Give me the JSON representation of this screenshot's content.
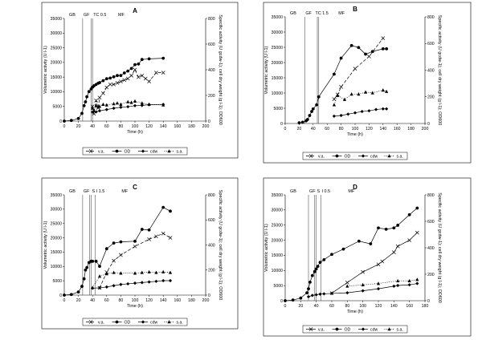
{
  "chart_data": [
    {
      "type": "line",
      "title": "A",
      "xlabel": "Time (h)",
      "ylabel_left": "Volumetric activity (U l-1)",
      "ylabel_right": "Specific activity (U gcdw-1); cell dry weight (g l-1); OD600",
      "xlim": [
        0,
        200
      ],
      "xticks": [
        0,
        20,
        40,
        60,
        80,
        100,
        120,
        140,
        160,
        180,
        200
      ],
      "ylim_left": [
        0,
        35000
      ],
      "yticks_left": [
        0,
        5000,
        10000,
        15000,
        20000,
        25000,
        30000,
        35000
      ],
      "ylim_right": [
        0,
        800
      ],
      "yticks_right": [
        0,
        200,
        400,
        600,
        800
      ],
      "phases": [
        {
          "label": "GB",
          "x": 0
        },
        {
          "label": "GF",
          "x": 26
        },
        {
          "label": "TC 0.5",
          "x": 40
        },
        {
          "label": "MF",
          "x": 75
        }
      ],
      "phase_lines": [
        26,
        38,
        40
      ],
      "series": [
        {
          "name": "v.a.",
          "axis": "left",
          "style": "dash",
          "marker": "x",
          "x": [
            40,
            42,
            45,
            48,
            50,
            55,
            60,
            65,
            70,
            75,
            80,
            85,
            90,
            95,
            100,
            105,
            110,
            115,
            120,
            130,
            140
          ],
          "y": [
            5000,
            2500,
            7000,
            4500,
            8000,
            9500,
            11500,
            12500,
            12500,
            13000,
            13500,
            14000,
            14500,
            15500,
            17500,
            15000,
            15500,
            14500,
            13500,
            16500,
            16500
          ]
        },
        {
          "name": "OD",
          "axis": "right",
          "style": "solid",
          "marker": "circle",
          "x": [
            0,
            10,
            20,
            25,
            28,
            30,
            32,
            35,
            38,
            40,
            42,
            45,
            48,
            50,
            55,
            60,
            65,
            70,
            75,
            80,
            85,
            90,
            95,
            100,
            105,
            110,
            120,
            140
          ],
          "y": [
            0,
            5,
            20,
            60,
            120,
            150,
            190,
            230,
            250,
            265,
            275,
            285,
            295,
            300,
            315,
            330,
            335,
            345,
            355,
            355,
            375,
            390,
            410,
            440,
            445,
            480,
            485,
            490
          ]
        },
        {
          "name": "cdw",
          "axis": "right",
          "style": "solid",
          "marker": "diamond",
          "x": [
            40,
            45,
            50,
            60,
            70,
            80,
            90,
            100,
            110,
            120,
            140
          ],
          "y": [
            70,
            72,
            80,
            90,
            100,
            108,
            112,
            120,
            122,
            128,
            130
          ]
        },
        {
          "name": "s.a.",
          "axis": "right",
          "style": "dot",
          "marker": "triangle",
          "x": [
            40,
            42,
            45,
            48,
            50,
            55,
            60,
            70,
            75,
            80,
            90,
            95,
            100,
            110,
            120,
            140
          ],
          "y": [
            100,
            80,
            120,
            110,
            115,
            130,
            125,
            135,
            140,
            130,
            150,
            145,
            155,
            140,
            130,
            125
          ]
        }
      ],
      "legend": {
        "placement": "bottom",
        "entries": [
          "v.a.",
          "OD",
          "cdw",
          "s.a."
        ]
      }
    },
    {
      "type": "line",
      "title": "B",
      "xlabel": "Time (h)",
      "ylabel_left": "Volumetric activity (U l-1)",
      "ylabel_right": "Specific activity (U gcdw-1); cell dry weight (g l-1); OD600",
      "xlim": [
        0,
        200
      ],
      "xticks": [
        0,
        20,
        40,
        60,
        80,
        100,
        120,
        140,
        160,
        180,
        200
      ],
      "ylim_left": [
        0,
        35000
      ],
      "yticks_left": [
        0,
        5000,
        10000,
        15000,
        20000,
        25000,
        30000,
        35000
      ],
      "ylim_right": [
        0,
        800
      ],
      "yticks_right": [
        0,
        200,
        400,
        600,
        800
      ],
      "phases": [
        {
          "label": "GB",
          "x": 0
        },
        {
          "label": "GF",
          "x": 28
        },
        {
          "label": "TC 1.5",
          "x": 42
        },
        {
          "label": "MF",
          "x": 75
        }
      ],
      "phase_lines": [
        28,
        46,
        48
      ],
      "series": [
        {
          "name": "v.a.",
          "axis": "left",
          "style": "dash",
          "marker": "x",
          "x": [
            70,
            75,
            80,
            100,
            120,
            140
          ],
          "y": [
            8000,
            9500,
            12000,
            18000,
            22000,
            28000
          ]
        },
        {
          "name": "OD",
          "axis": "right",
          "style": "solid",
          "marker": "circle",
          "x": [
            20,
            25,
            30,
            32,
            35,
            38,
            40,
            45,
            48,
            70,
            80,
            95,
            105,
            115,
            125,
            140,
            145
          ],
          "y": [
            5,
            10,
            20,
            30,
            60,
            90,
            110,
            140,
            200,
            370,
            490,
            585,
            570,
            520,
            540,
            560,
            560
          ]
        },
        {
          "name": "cdw",
          "axis": "right",
          "style": "solid",
          "marker": "diamond",
          "x": [
            70,
            80,
            90,
            100,
            110,
            120,
            130,
            140,
            145
          ],
          "y": [
            55,
            60,
            70,
            80,
            90,
            95,
            105,
            110,
            110
          ]
        },
        {
          "name": "s.a.",
          "axis": "right",
          "style": "dot",
          "marker": "triangle",
          "x": [
            70,
            75,
            85,
            95,
            105,
            115,
            125,
            140,
            145
          ],
          "y": [
            140,
            210,
            180,
            220,
            220,
            235,
            230,
            250,
            240
          ]
        }
      ],
      "legend": {
        "placement": "bottom",
        "entries": [
          "v.a.",
          "OD",
          "cdw",
          "s.a."
        ]
      }
    },
    {
      "type": "line",
      "title": "C",
      "xlabel": "Time (h)",
      "ylabel_left": "Volumetric activity (U l-1)",
      "ylabel_right": "Specific activity (U gcdw-1); cell dry weight (g l-1); OD600",
      "xlim": [
        0,
        200
      ],
      "xticks": [
        0,
        20,
        40,
        60,
        80,
        100,
        120,
        140,
        160,
        180,
        200
      ],
      "ylim_left": [
        0,
        35000
      ],
      "yticks_left": [
        0,
        5000,
        10000,
        15000,
        20000,
        25000,
        30000,
        35000
      ],
      "ylim_right": [
        0,
        800
      ],
      "yticks_right": [
        0,
        200,
        400,
        600,
        800
      ],
      "phases": [
        {
          "label": "GB",
          "x": 0
        },
        {
          "label": "GF",
          "x": 26
        },
        {
          "label": "S",
          "x": 38
        },
        {
          "label": "I 1.5",
          "x": 44
        },
        {
          "label": "MF",
          "x": 80
        }
      ],
      "phase_lines": [
        26,
        36,
        38,
        44
      ],
      "series": [
        {
          "name": "v.a.",
          "axis": "left",
          "style": "dash",
          "marker": "x",
          "x": [
            50,
            60,
            70,
            80,
            100,
            120,
            130,
            140,
            150
          ],
          "y": [
            2500,
            8000,
            12000,
            14000,
            17000,
            19500,
            20500,
            21500,
            20000
          ]
        },
        {
          "name": "OD",
          "axis": "right",
          "style": "solid",
          "marker": "circle",
          "x": [
            0,
            10,
            20,
            25,
            28,
            30,
            32,
            35,
            38,
            40,
            45,
            50,
            60,
            70,
            80,
            100,
            110,
            120,
            140,
            150
          ],
          "y": [
            0,
            5,
            25,
            70,
            130,
            200,
            220,
            260,
            270,
            270,
            270,
            230,
            370,
            415,
            425,
            430,
            525,
            520,
            700,
            670
          ]
        },
        {
          "name": "cdw",
          "axis": "right",
          "style": "solid",
          "marker": "diamond",
          "x": [
            40,
            50,
            60,
            70,
            80,
            90,
            100,
            110,
            120,
            130,
            140,
            150
          ],
          "y": [
            55,
            58,
            65,
            75,
            85,
            90,
            95,
            100,
            105,
            110,
            115,
            115
          ]
        },
        {
          "name": "s.a.",
          "axis": "right",
          "style": "dot",
          "marker": "triangle",
          "x": [
            40,
            50,
            60,
            70,
            80,
            100,
            110,
            120,
            130,
            140,
            150
          ],
          "y": [
            60,
            150,
            170,
            180,
            175,
            175,
            180,
            185,
            180,
            185,
            180
          ]
        }
      ],
      "legend": {
        "placement": "bottom",
        "entries": [
          "v.a.",
          "OD",
          "cdw",
          "s.a."
        ]
      }
    },
    {
      "type": "line",
      "title": "D",
      "xlabel": "Time (h)",
      "ylabel_left": "Volumetric activity (U l-1)",
      "ylabel_right": "Specific activity (U gcdw-1); cell dry weight (g l-1); OD600",
      "xlim": [
        0,
        180
      ],
      "xticks": [
        0,
        20,
        40,
        60,
        80,
        100,
        120,
        140,
        160,
        180
      ],
      "ylim_left": [
        0,
        35000
      ],
      "yticks_left": [
        0,
        5000,
        10000,
        15000,
        20000,
        25000,
        30000,
        35000
      ],
      "ylim_right": [
        0,
        800
      ],
      "yticks_right": [
        0,
        200,
        400,
        600,
        800
      ],
      "phases": [
        {
          "label": "GB",
          "x": 0
        },
        {
          "label": "GF",
          "x": 30
        },
        {
          "label": "S",
          "x": 40
        },
        {
          "label": "I 0.5",
          "x": 46
        },
        {
          "label": "MF",
          "x": 80
        }
      ],
      "phase_lines": [
        30,
        38,
        40,
        46
      ],
      "series": [
        {
          "name": "v.a.",
          "axis": "left",
          "style": "solid",
          "marker": "x",
          "x": [
            60,
            80,
            100,
            120,
            125,
            140,
            145,
            160,
            170
          ],
          "y": [
            2500,
            6000,
            9500,
            12000,
            13000,
            16000,
            18000,
            20000,
            22500
          ]
        },
        {
          "name": "OD",
          "axis": "right",
          "style": "solid",
          "marker": "circle",
          "x": [
            0,
            10,
            20,
            28,
            30,
            32,
            35,
            38,
            40,
            42,
            45,
            50,
            60,
            75,
            95,
            110,
            120,
            130,
            140,
            145,
            160,
            170
          ],
          "y": [
            0,
            5,
            20,
            60,
            90,
            140,
            190,
            220,
            240,
            260,
            290,
            310,
            350,
            390,
            450,
            430,
            550,
            540,
            550,
            570,
            650,
            700
          ]
        },
        {
          "name": "cdw",
          "axis": "right",
          "style": "solid",
          "marker": "diamond",
          "x": [
            30,
            35,
            40,
            45,
            50,
            60,
            80,
            100,
            120,
            140,
            145,
            160,
            170
          ],
          "y": [
            30,
            40,
            45,
            50,
            52,
            55,
            60,
            75,
            90,
            110,
            115,
            120,
            130
          ]
        },
        {
          "name": "s.a.",
          "axis": "right",
          "style": "dot",
          "marker": "triangle",
          "x": [
            80,
            100,
            120,
            145,
            160,
            170
          ],
          "y": [
            110,
            120,
            130,
            150,
            150,
            160
          ]
        }
      ],
      "legend": {
        "placement": "bottom",
        "entries": [
          "v.a.",
          "OD",
          "cdw",
          "s.a."
        ]
      }
    }
  ]
}
